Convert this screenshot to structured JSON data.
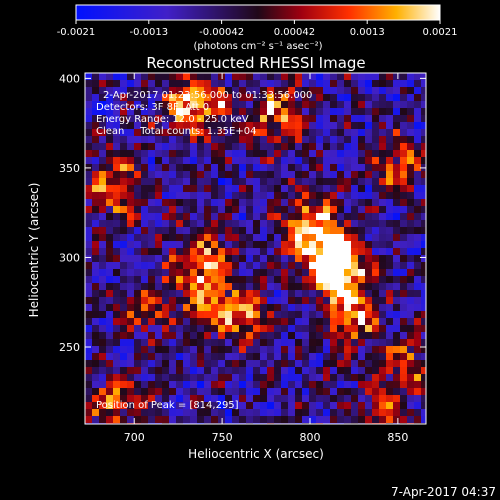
{
  "chart_data": {
    "type": "heatmap",
    "title": "Reconstructed RHESSI Image",
    "xlabel": "Heliocentric X (arcsec)",
    "ylabel": "Heliocentric Y (arcsec)",
    "xlim": [
      672,
      866
    ],
    "ylim": [
      207,
      403
    ],
    "x_ticks": [
      700,
      750,
      800,
      850
    ],
    "y_ticks": [
      250,
      300,
      350,
      400
    ],
    "colorbar": {
      "min": -0.0021,
      "max": 0.0021,
      "tick_labels": [
        "-0.0021",
        "-0.0013",
        "-0.00042",
        "0.00042",
        "0.0013",
        "0.0021"
      ],
      "units": "(photons cm⁻² s⁻¹ asec⁻²)",
      "colormap": "blue-purple-red-yellow-white"
    },
    "annotations": [
      "2-Apr-2017 01:23:56.000 to 01:33:56.000",
      "Detectors: 3F 8F, Att 0",
      "Energy Range: 12.0 - 25.0 keV",
      "Clean     Total counts: 1.35E+04"
    ],
    "peak_label": "Position of Peak = [814,295]",
    "peak_position": [
      814,
      295
    ],
    "grid": false,
    "sources": [
      {
        "x": 814,
        "y": 297,
        "sigma_x": 10,
        "sigma_y": 12,
        "amplitude": 1.0
      },
      {
        "x": 800,
        "y": 315,
        "sigma_x": 12,
        "sigma_y": 14,
        "amplitude": 0.7
      },
      {
        "x": 824,
        "y": 270,
        "sigma_x": 10,
        "sigma_y": 16,
        "amplitude": 0.6
      },
      {
        "x": 740,
        "y": 290,
        "sigma_x": 14,
        "sigma_y": 18,
        "amplitude": 0.7
      },
      {
        "x": 765,
        "y": 265,
        "sigma_x": 10,
        "sigma_y": 10,
        "amplitude": 0.55
      },
      {
        "x": 735,
        "y": 385,
        "sigma_x": 14,
        "sigma_y": 12,
        "amplitude": 0.7
      },
      {
        "x": 780,
        "y": 380,
        "sigma_x": 12,
        "sigma_y": 12,
        "amplitude": 0.55
      },
      {
        "x": 690,
        "y": 340,
        "sigma_x": 12,
        "sigma_y": 14,
        "amplitude": 0.55
      },
      {
        "x": 850,
        "y": 350,
        "sigma_x": 10,
        "sigma_y": 12,
        "amplitude": 0.5
      },
      {
        "x": 855,
        "y": 240,
        "sigma_x": 10,
        "sigma_y": 12,
        "amplitude": 0.5
      },
      {
        "x": 690,
        "y": 220,
        "sigma_x": 12,
        "sigma_y": 10,
        "amplitude": 0.55
      },
      {
        "x": 840,
        "y": 215,
        "sigma_x": 12,
        "sigma_y": 8,
        "amplitude": 0.45
      },
      {
        "x": 705,
        "y": 270,
        "sigma_x": 10,
        "sigma_y": 10,
        "amplitude": 0.4
      }
    ]
  },
  "footer": {
    "timestamp": "7-Apr-2017 04:37"
  }
}
